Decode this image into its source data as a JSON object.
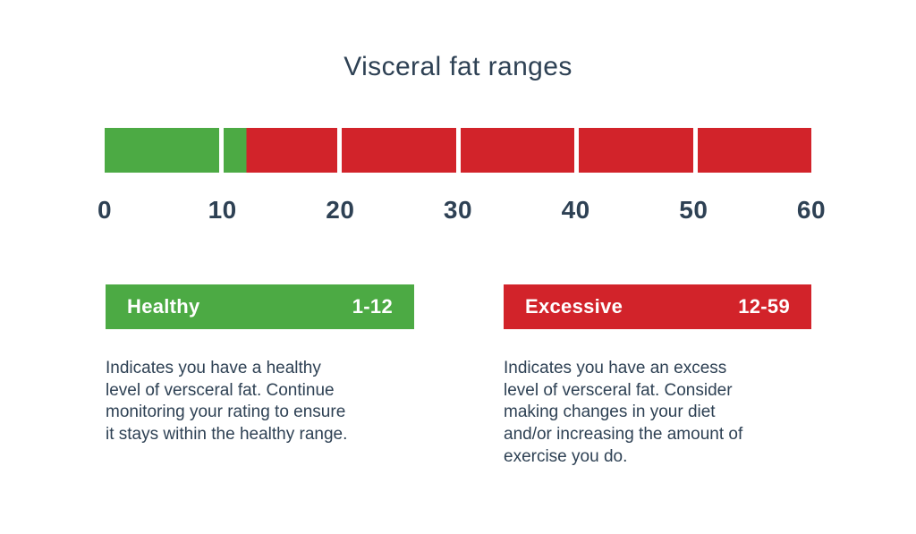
{
  "colors": {
    "green": "#4caa44",
    "red": "#d2232a",
    "navy": "#2e4154"
  },
  "chart_data": {
    "type": "bar",
    "title": "Visceral fat ranges",
    "xlim": [
      0,
      60
    ],
    "segment_size": 10,
    "tick_labels": [
      0,
      10,
      20,
      30,
      40,
      50,
      60
    ],
    "grid": false,
    "legend_position": "below",
    "zones": [
      {
        "name": "healthy",
        "start": 0,
        "end": 12,
        "color_key": "green"
      },
      {
        "name": "excessive",
        "start": 12,
        "end": 60,
        "color_key": "red"
      }
    ]
  },
  "legend": {
    "healthy": {
      "label": "Healthy",
      "range": "1-12",
      "description": "Indicates you have a healthy\nlevel of versceral fat. Continue\nmonitoring your rating to ensure\nit stays within the healthy range."
    },
    "excessive": {
      "label": "Excessive",
      "range": "12-59",
      "description": "Indicates you have an excess\nlevel of versceral fat. Consider\nmaking changes in your diet\nand/or increasing the amount of\nexercise you do."
    }
  }
}
